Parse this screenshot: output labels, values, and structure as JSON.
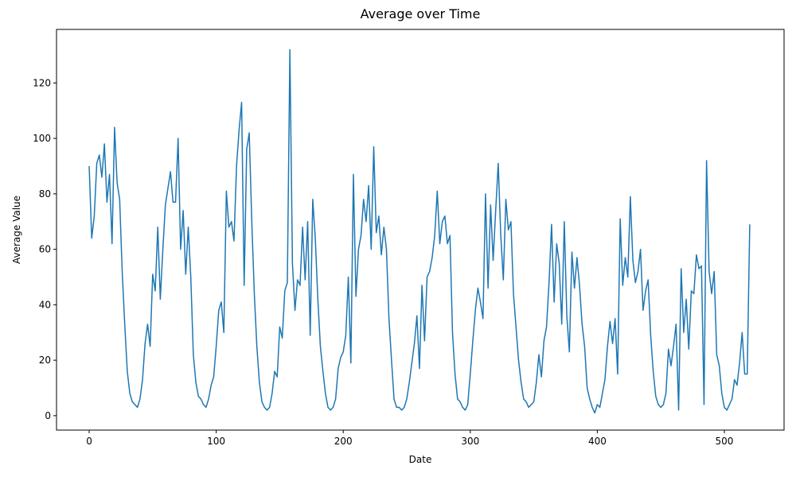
{
  "chart_data": {
    "type": "line",
    "title": "Average over Time",
    "x_label": "Date",
    "y_label": "Average Value",
    "x": [
      0,
      2,
      4,
      6,
      8,
      10,
      12,
      14,
      16,
      18,
      20,
      22,
      24,
      26,
      28,
      30,
      32,
      34,
      36,
      38,
      40,
      42,
      44,
      46,
      48,
      50,
      52,
      54,
      56,
      58,
      60,
      62,
      64,
      66,
      68,
      70,
      72,
      74,
      76,
      78,
      80,
      82,
      84,
      86,
      88,
      90,
      92,
      94,
      96,
      98,
      100,
      102,
      104,
      106,
      108,
      110,
      112,
      114,
      116,
      118,
      120,
      122,
      124,
      126,
      128,
      130,
      132,
      134,
      136,
      138,
      140,
      142,
      144,
      146,
      148,
      150,
      152,
      154,
      156,
      158,
      160,
      162,
      164,
      166,
      168,
      170,
      172,
      174,
      176,
      178,
      180,
      182,
      184,
      186,
      188,
      190,
      192,
      194,
      196,
      198,
      200,
      202,
      204,
      206,
      208,
      210,
      212,
      214,
      216,
      218,
      220,
      222,
      224,
      226,
      228,
      230,
      232,
      234,
      236,
      238,
      240,
      242,
      244,
      246,
      248,
      250,
      252,
      254,
      256,
      258,
      260,
      262,
      264,
      266,
      268,
      270,
      272,
      274,
      276,
      278,
      280,
      282,
      284,
      286,
      288,
      290,
      292,
      294,
      296,
      298,
      300,
      302,
      304,
      306,
      308,
      310,
      312,
      314,
      316,
      318,
      320,
      322,
      324,
      326,
      328,
      330,
      332,
      334,
      336,
      338,
      340,
      342,
      344,
      346,
      348,
      350,
      352,
      354,
      356,
      358,
      360,
      362,
      364,
      366,
      368,
      370,
      372,
      374,
      376,
      378,
      380,
      382,
      384,
      386,
      388,
      390,
      392,
      394,
      396,
      398,
      400,
      402,
      404,
      406,
      408,
      410,
      412,
      414,
      416,
      418,
      420,
      422,
      424,
      426,
      428,
      430,
      432,
      434,
      436,
      438,
      440,
      442,
      444,
      446,
      448,
      450,
      452,
      454,
      456,
      458,
      460,
      462,
      464,
      466,
      468,
      470,
      472,
      474,
      476,
      478,
      480,
      482,
      484,
      486,
      488,
      490,
      492,
      494,
      496,
      498,
      500,
      502,
      504,
      506,
      508,
      510,
      512,
      514,
      516,
      518,
      520
    ],
    "series": [
      {
        "name": "Average Value",
        "color": "#1f77b4",
        "values": [
          90,
          64,
          72,
          91,
          94,
          86,
          98,
          77,
          87,
          62,
          104,
          84,
          78,
          52,
          33,
          16,
          8,
          5,
          4,
          3,
          6,
          13,
          26,
          33,
          25,
          51,
          45,
          68,
          42,
          60,
          76,
          82,
          88,
          77,
          77,
          100,
          60,
          74,
          51,
          68,
          50,
          22,
          12,
          7,
          6,
          4,
          3,
          6,
          11,
          14,
          25,
          38,
          41,
          30,
          81,
          68,
          70,
          63,
          90,
          103,
          113,
          47,
          96,
          102,
          70,
          44,
          25,
          12,
          5,
          3,
          2,
          3,
          8,
          16,
          14,
          32,
          28,
          45,
          48,
          132,
          55,
          38,
          49,
          47,
          68,
          49,
          70,
          29,
          78,
          64,
          42,
          25,
          16,
          8,
          3,
          2,
          3,
          6,
          17,
          21,
          23,
          29,
          50,
          19,
          87,
          43,
          60,
          65,
          78,
          70,
          83,
          60,
          97,
          66,
          72,
          58,
          68,
          60,
          35,
          20,
          6,
          3,
          3,
          2,
          3,
          6,
          12,
          19,
          26,
          36,
          17,
          47,
          27,
          50,
          52,
          57,
          65,
          81,
          62,
          70,
          72,
          62,
          65,
          30,
          15,
          6,
          5,
          3,
          2,
          4,
          15,
          27,
          38,
          46,
          41,
          35,
          80,
          46,
          76,
          56,
          74,
          91,
          65,
          49,
          78,
          67,
          70,
          44,
          32,
          20,
          12,
          6,
          5,
          3,
          4,
          5,
          12,
          22,
          14,
          27,
          32,
          48,
          69,
          41,
          62,
          55,
          33,
          70,
          36,
          23,
          59,
          46,
          57,
          47,
          33,
          25,
          10,
          6,
          3,
          1,
          4,
          3,
          8,
          13,
          25,
          34,
          26,
          35,
          15,
          71,
          47,
          57,
          50,
          79,
          56,
          48,
          52,
          60,
          38,
          45,
          49,
          29,
          16,
          7,
          4,
          3,
          4,
          8,
          24,
          18,
          25,
          33,
          2,
          53,
          30,
          42,
          24,
          45,
          44,
          58,
          53,
          54,
          4,
          92,
          52,
          44,
          52,
          22,
          18,
          8,
          3,
          2,
          4,
          6,
          13,
          11,
          19,
          30,
          15,
          15,
          69
        ]
      }
    ],
    "xlim": [
      -25.7,
      547
    ],
    "ylim": [
      -5.2,
      139.3
    ],
    "xticks": [
      0,
      100,
      200,
      300,
      400,
      500
    ],
    "yticks": [
      0,
      20,
      40,
      60,
      80,
      100,
      120
    ]
  }
}
